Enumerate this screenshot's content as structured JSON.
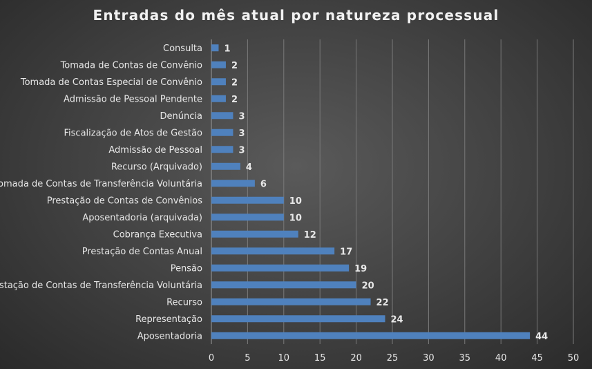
{
  "chart_data": {
    "type": "bar",
    "orientation": "horizontal",
    "title": "Entradas do mês atual por natureza processual",
    "categories": [
      "Consulta",
      "Tomada de Contas de Convênio",
      "Tomada de Contas Especial de Convênio",
      "Admissão de Pessoal Pendente",
      "Denúncia",
      "Fiscalização de Atos de Gestão",
      "Admissão de Pessoal",
      "Recurso (Arquivado)",
      "Tomada de Contas de Transferência Voluntária",
      "Prestação de Contas de Convênios",
      "Aposentadoria (arquivada)",
      "Cobrança Executiva",
      "Prestação de Contas Anual",
      "Pensão",
      "Prestação de Contas de Transferência Voluntária",
      "Recurso",
      "Representação",
      "Aposentadoria"
    ],
    "values": [
      1,
      2,
      2,
      2,
      3,
      3,
      3,
      4,
      6,
      10,
      10,
      12,
      17,
      19,
      20,
      22,
      24,
      44
    ],
    "xlim": [
      0,
      50
    ],
    "xticks": [
      0,
      5,
      10,
      15,
      20,
      25,
      30,
      35,
      40,
      45,
      50
    ],
    "grid": true,
    "data_labels": true,
    "bar_color": "#4f81bd"
  }
}
